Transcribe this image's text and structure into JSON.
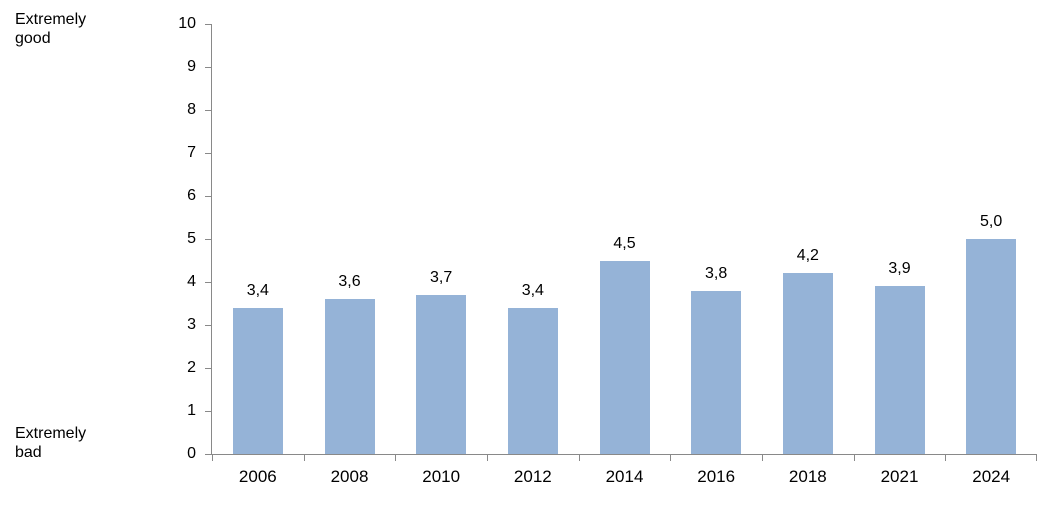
{
  "chart_data": {
    "type": "bar",
    "title": "",
    "xlabel": "",
    "ylabel": "",
    "categories": [
      "2006",
      "2008",
      "2010",
      "2012",
      "2014",
      "2016",
      "2018",
      "2021",
      "2024"
    ],
    "values": [
      3.4,
      3.6,
      3.7,
      3.4,
      4.5,
      3.8,
      4.2,
      3.9,
      5.0
    ],
    "value_labels": [
      "3,4",
      "3,6",
      "3,7",
      "3,4",
      "4,5",
      "3,8",
      "4,2",
      "3,9",
      "5,0"
    ],
    "ylim": [
      0,
      10
    ],
    "y_ticks": [
      0,
      1,
      2,
      3,
      4,
      5,
      6,
      7,
      8,
      9,
      10
    ],
    "grid": false,
    "legend": false,
    "bar_color": "#95B3D7",
    "axis_color": "#898989",
    "scale_annotations": {
      "top": "Extremely\ngood",
      "bottom": "Extremely\nbad"
    }
  }
}
